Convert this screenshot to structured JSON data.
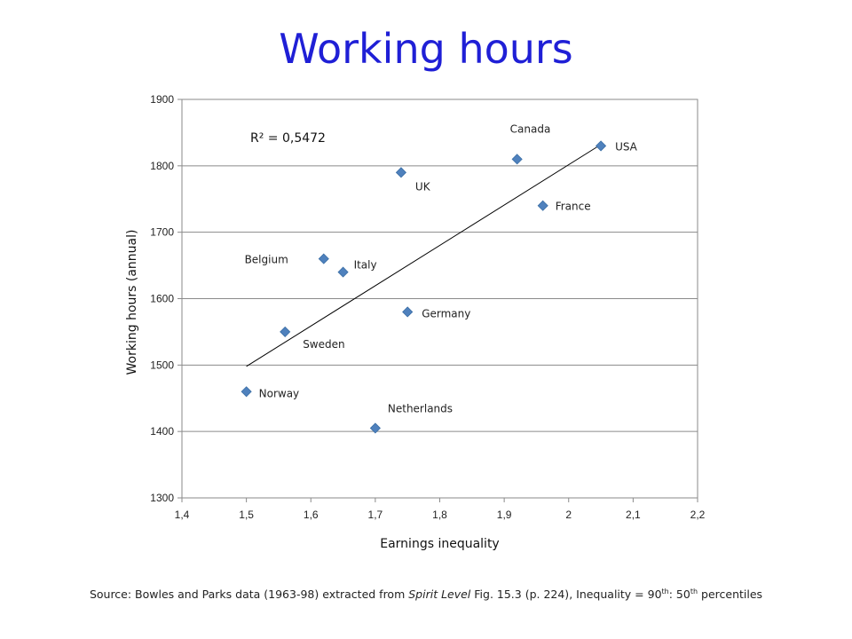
{
  "slide": {
    "title": "Working hours"
  },
  "chart_data": {
    "type": "scatter",
    "xlabel": "Earnings inequality",
    "ylabel": "Working hours (annual)",
    "xlim": [
      1.4,
      2.2
    ],
    "ylim": [
      1300,
      1900
    ],
    "x_ticks": [
      "1,4",
      "1,5",
      "1,6",
      "1,7",
      "1,8",
      "1,9",
      "2",
      "2,1",
      "2,2"
    ],
    "y_ticks": [
      "1300",
      "1400",
      "1500",
      "1600",
      "1700",
      "1800",
      "1900"
    ],
    "gridlines": "horizontal",
    "marker": "diamond",
    "marker_color": "#4f81bd",
    "trendline": {
      "type": "linear",
      "r_squared_label": "R² = 0,5472",
      "from": [
        1.5,
        1498
      ],
      "to": [
        2.05,
        1832
      ]
    },
    "points": [
      {
        "label": "USA",
        "x": 2.05,
        "y": 1830
      },
      {
        "label": "Canada",
        "x": 1.92,
        "y": 1810
      },
      {
        "label": "UK",
        "x": 1.74,
        "y": 1790
      },
      {
        "label": "France",
        "x": 1.96,
        "y": 1740
      },
      {
        "label": "Belgium",
        "x": 1.62,
        "y": 1660
      },
      {
        "label": "Italy",
        "x": 1.65,
        "y": 1640
      },
      {
        "label": "Germany",
        "x": 1.75,
        "y": 1580
      },
      {
        "label": "Sweden",
        "x": 1.56,
        "y": 1550
      },
      {
        "label": "Norway",
        "x": 1.5,
        "y": 1460
      },
      {
        "label": "Netherlands",
        "x": 1.7,
        "y": 1405
      }
    ]
  },
  "source": {
    "prefix": "Source: Bowles and Parks data (1963-98) extracted from ",
    "book": "Spirit Level",
    "middle": " Fig. 15.3 (p. 224), Inequality = 90",
    "sup1": "th",
    "sep": ": 50",
    "sup2": "th",
    "suffix": " percentiles"
  }
}
